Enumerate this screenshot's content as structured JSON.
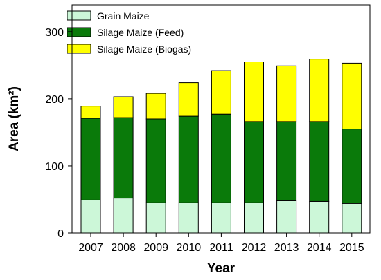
{
  "chart_data": {
    "type": "bar",
    "stacked": true,
    "categories": [
      "2007",
      "2008",
      "2009",
      "2010",
      "2011",
      "2012",
      "2013",
      "2014",
      "2015"
    ],
    "series": [
      {
        "name": "Grain Maize",
        "color": "#ccf7d8",
        "values": [
          49,
          52,
          45,
          45,
          45,
          45,
          48,
          47,
          44
        ]
      },
      {
        "name": "Silage Maize (Feed)",
        "color": "#0a7a0a",
        "values": [
          122,
          120,
          125,
          129,
          132,
          121,
          118,
          119,
          111
        ]
      },
      {
        "name": "Silage Maize (Biogas)",
        "color": "#ffff00",
        "values": [
          18,
          31,
          38,
          50,
          65,
          89,
          83,
          93,
          98
        ]
      }
    ],
    "xlabel": "Year",
    "ylabel": "Area (km²)",
    "ylim": [
      0,
      340
    ],
    "yticks": [
      "0",
      "100",
      "200",
      "300"
    ],
    "legend": "top-left",
    "grid": false
  }
}
